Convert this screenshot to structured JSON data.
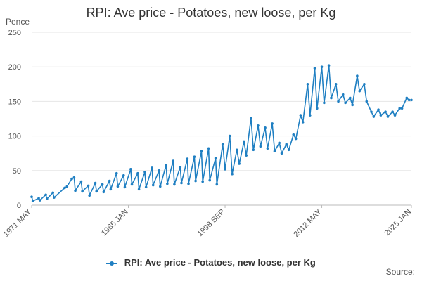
{
  "chart_data": {
    "type": "line",
    "title": "RPI: Ave price - Potatoes, new loose, per Kg",
    "ylabel": "Pence",
    "xlabel": "",
    "ylim": [
      0,
      250
    ],
    "yticks": [
      0,
      50,
      100,
      150,
      200,
      250
    ],
    "x_range": [
      "1971 MAY",
      "2025 JAN"
    ],
    "xticks": [
      "1971 MAY",
      "1985 JAN",
      "1998 SEP",
      "2012 MAY",
      "2025 JAN"
    ],
    "grid": "horizontal",
    "legend_position": "bottom",
    "series": [
      {
        "name": "RPI: Ave price - Potatoes, new loose, per Kg",
        "color": "#1f7fc2",
        "points": [
          [
            "1971 MAY",
            12
          ],
          [
            "1971 JUL",
            6
          ],
          [
            "1972 MAY",
            10
          ],
          [
            "1972 JUL",
            7
          ],
          [
            "1973 MAY",
            15
          ],
          [
            "1973 JUL",
            9
          ],
          [
            "1974 MAY",
            18
          ],
          [
            "1974 JUL",
            11
          ],
          [
            "1976 JAN",
            25
          ],
          [
            "1976 MAY",
            27
          ],
          [
            "1977 JAN",
            38
          ],
          [
            "1977 MAY",
            40
          ],
          [
            "1977 JUL",
            21
          ],
          [
            "1978 MAY",
            34
          ],
          [
            "1978 JUL",
            20
          ],
          [
            "1979 MAY",
            28
          ],
          [
            "1979 JUL",
            14
          ],
          [
            "1980 MAY",
            32
          ],
          [
            "1980 JUL",
            20
          ],
          [
            "1981 MAY",
            30
          ],
          [
            "1981 JUL",
            19
          ],
          [
            "1982 MAY",
            35
          ],
          [
            "1982 JUL",
            23
          ],
          [
            "1983 MAY",
            46
          ],
          [
            "1983 JUL",
            27
          ],
          [
            "1984 MAY",
            43
          ],
          [
            "1984 JUL",
            26
          ],
          [
            "1985 MAY",
            52
          ],
          [
            "1985 JUL",
            30
          ],
          [
            "1986 MAY",
            46
          ],
          [
            "1986 JUL",
            23
          ],
          [
            "1987 MAY",
            48
          ],
          [
            "1987 JUL",
            26
          ],
          [
            "1988 MAY",
            54
          ],
          [
            "1988 JUL",
            29
          ],
          [
            "1989 MAY",
            50
          ],
          [
            "1989 JUL",
            27
          ],
          [
            "1990 MAY",
            58
          ],
          [
            "1990 JUL",
            31
          ],
          [
            "1991 MAY",
            64
          ],
          [
            "1991 JUL",
            30
          ],
          [
            "1992 MAY",
            55
          ],
          [
            "1992 JUL",
            32
          ],
          [
            "1993 MAY",
            67
          ],
          [
            "1993 JUL",
            31
          ],
          [
            "1994 MAY",
            70
          ],
          [
            "1994 JUL",
            35
          ],
          [
            "1995 MAY",
            78
          ],
          [
            "1995 JUL",
            34
          ],
          [
            "1996 MAY",
            82
          ],
          [
            "1996 JUL",
            36
          ],
          [
            "1997 MAY",
            68
          ],
          [
            "1997 JUL",
            30
          ],
          [
            "1998 MAY",
            88
          ],
          [
            "1998 SEP",
            52
          ],
          [
            "1999 MAY",
            100
          ],
          [
            "1999 SEP",
            45
          ],
          [
            "2000 MAY",
            80
          ],
          [
            "2000 SEP",
            60
          ],
          [
            "2001 MAY",
            92
          ],
          [
            "2001 SEP",
            72
          ],
          [
            "2002 MAY",
            126
          ],
          [
            "2002 SEP",
            80
          ],
          [
            "2003 MAY",
            115
          ],
          [
            "2003 SEP",
            85
          ],
          [
            "2004 MAY",
            112
          ],
          [
            "2004 SEP",
            82
          ],
          [
            "2005 MAY",
            118
          ],
          [
            "2005 SEP",
            78
          ],
          [
            "2006 MAY",
            90
          ],
          [
            "2006 SEP",
            75
          ],
          [
            "2007 MAY",
            88
          ],
          [
            "2007 SEP",
            80
          ],
          [
            "2008 MAY",
            102
          ],
          [
            "2008 SEP",
            96
          ],
          [
            "2009 MAY",
            130
          ],
          [
            "2009 SEP",
            120
          ],
          [
            "2010 MAY",
            175
          ],
          [
            "2010 SEP",
            130
          ],
          [
            "2011 MAY",
            198
          ],
          [
            "2011 SEP",
            140
          ],
          [
            "2012 MAY",
            200
          ],
          [
            "2012 SEP",
            148
          ],
          [
            "2013 MAY",
            202
          ],
          [
            "2013 SEP",
            155
          ],
          [
            "2014 MAY",
            175
          ],
          [
            "2014 SEP",
            150
          ],
          [
            "2015 MAY",
            160
          ],
          [
            "2015 SEP",
            148
          ],
          [
            "2016 MAY",
            155
          ],
          [
            "2016 SEP",
            145
          ],
          [
            "2017 MAY",
            187
          ],
          [
            "2017 SEP",
            165
          ],
          [
            "2018 MAY",
            175
          ],
          [
            "2018 SEP",
            150
          ],
          [
            "2019 MAY",
            135
          ],
          [
            "2019 SEP",
            128
          ],
          [
            "2020 MAY",
            138
          ],
          [
            "2020 SEP",
            130
          ],
          [
            "2021 MAY",
            135
          ],
          [
            "2021 SEP",
            128
          ],
          [
            "2022 MAY",
            135
          ],
          [
            "2022 SEP",
            130
          ],
          [
            "2023 MAY",
            140
          ],
          [
            "2023 SEP",
            140
          ],
          [
            "2024 MAY",
            155
          ],
          [
            "2024 SEP",
            152
          ],
          [
            "2025 JAN",
            152
          ]
        ]
      }
    ],
    "source_label": "Source:"
  }
}
